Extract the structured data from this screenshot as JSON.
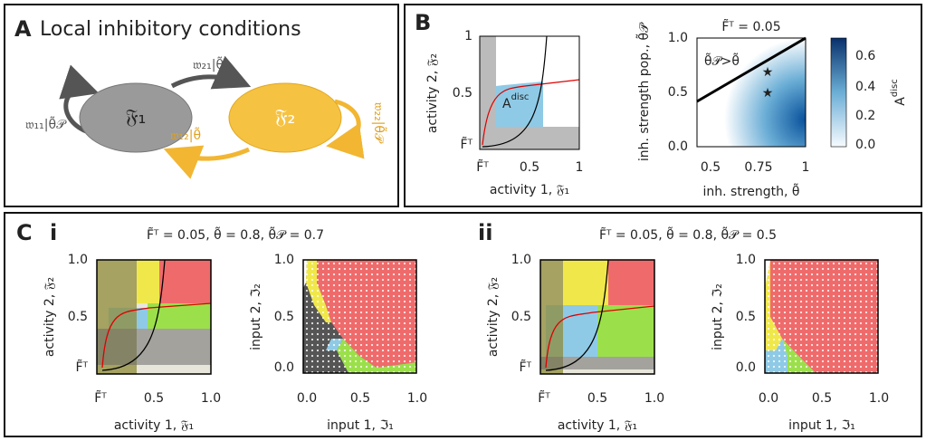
{
  "panel_a": {
    "letter": "A",
    "title": "Local inhibitory conditions",
    "nodes": [
      {
        "label": "𝔉₁"
      },
      {
        "label": "𝔉₂"
      }
    ],
    "edges": [
      {
        "label": "𝔴₁₁|θ̃𝒫"
      },
      {
        "label": "𝔴₂₁|θ̃"
      },
      {
        "label": "𝔴₁₂|θ̃"
      },
      {
        "label": "𝔴₂₂|θ̃𝒫"
      }
    ]
  },
  "panel_b": {
    "letter": "B",
    "activity_plot": {
      "y_label": "activity 2, 𝔉₂",
      "x_label": "activity 1, 𝔉₁",
      "y_ticks": [
        "1",
        "0.5",
        "F̃ᵀ"
      ],
      "x_ticks": [
        "F̃ᵀ",
        "0.5",
        "1"
      ],
      "area_label": "A",
      "area_label_sup": "disc"
    },
    "heatmap": {
      "title": "F̃ᵀ = 0.05",
      "y_label": "inh. strength pop., θ̃𝒫",
      "x_label": "inh. strength, θ̃",
      "y_ticks": [
        "1.0",
        "0.5",
        "0.0"
      ],
      "x_ticks": [
        "0.5",
        "0.75",
        "1"
      ],
      "annotation": "θ̃𝒫>θ̃",
      "colorbar_ticks": [
        "0.6",
        "0.4",
        "0.2",
        "0.0"
      ],
      "colorbar_label": "A",
      "colorbar_label_sup": "disc"
    }
  },
  "panel_c": {
    "letter": "C",
    "subpanels": [
      {
        "numeral": "i",
        "title": "F̃ᵀ = 0.05, θ̃ = 0.8, θ̃𝒫 = 0.7",
        "activity_plot": {
          "y_label": "activity 2, 𝔉₂",
          "x_label": "activity 1, 𝔉₁",
          "y_ticks": [
            "1.0",
            "0.5",
            "F̃ᵀ"
          ],
          "x_ticks": [
            "F̃ᵀ",
            "0.5",
            "1.0"
          ]
        },
        "input_plot": {
          "y_label": "input 2, ℑ₂",
          "x_label": "input 1, ℑ₁",
          "y_ticks": [
            "1.0",
            "0.5",
            "0.0"
          ],
          "x_ticks": [
            "0.0",
            "0.5",
            "1.0"
          ]
        }
      },
      {
        "numeral": "ii",
        "title": "F̃ᵀ = 0.05, θ̃ = 0.8, θ̃𝒫 = 0.5",
        "activity_plot": {
          "y_label": "activity 2, 𝔉₂",
          "x_label": "activity 1, 𝔉₁",
          "y_ticks": [
            "1.0",
            "0.5",
            "F̃ᵀ"
          ],
          "x_ticks": [
            "F̃ᵀ",
            "0.5",
            "1.0"
          ]
        },
        "input_plot": {
          "y_label": "input 2, ℑ₂",
          "x_label": "input 1, ℑ₁",
          "y_ticks": [
            "1.0",
            "0.5",
            "0.0"
          ],
          "x_ticks": [
            "0.0",
            "0.5",
            "1.0"
          ]
        }
      }
    ]
  }
}
